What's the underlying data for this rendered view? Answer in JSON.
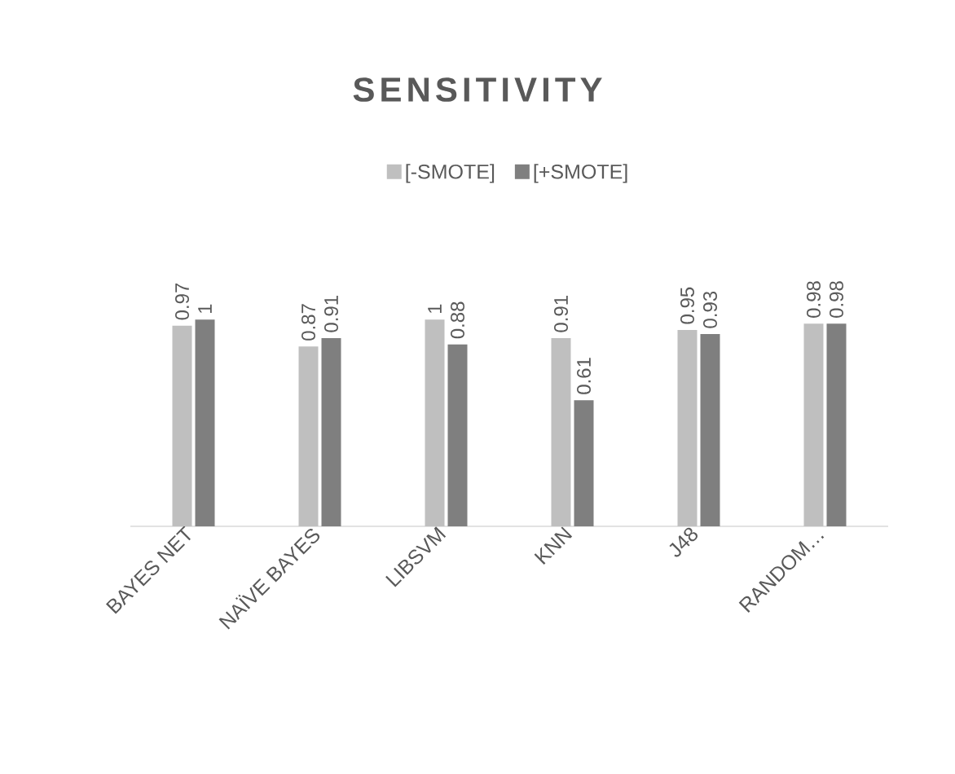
{
  "chart_data": {
    "type": "bar",
    "title": "SENSITIVITY",
    "categories": [
      "BAYES NET",
      "NAÏVE BAYES",
      "LIBSVM",
      "KNN",
      "J48",
      "RANDOM…"
    ],
    "series": [
      {
        "name": "[-SMOTE]",
        "color": "#bfbfbf",
        "values": [
          0.97,
          0.87,
          1,
          0.91,
          0.95,
          0.98
        ]
      },
      {
        "name": "[+SMOTE]",
        "color": "#7f7f7f",
        "values": [
          1,
          0.91,
          0.88,
          0.61,
          0.93,
          0.98
        ]
      }
    ],
    "data_labels": true,
    "legend": "top"
  }
}
